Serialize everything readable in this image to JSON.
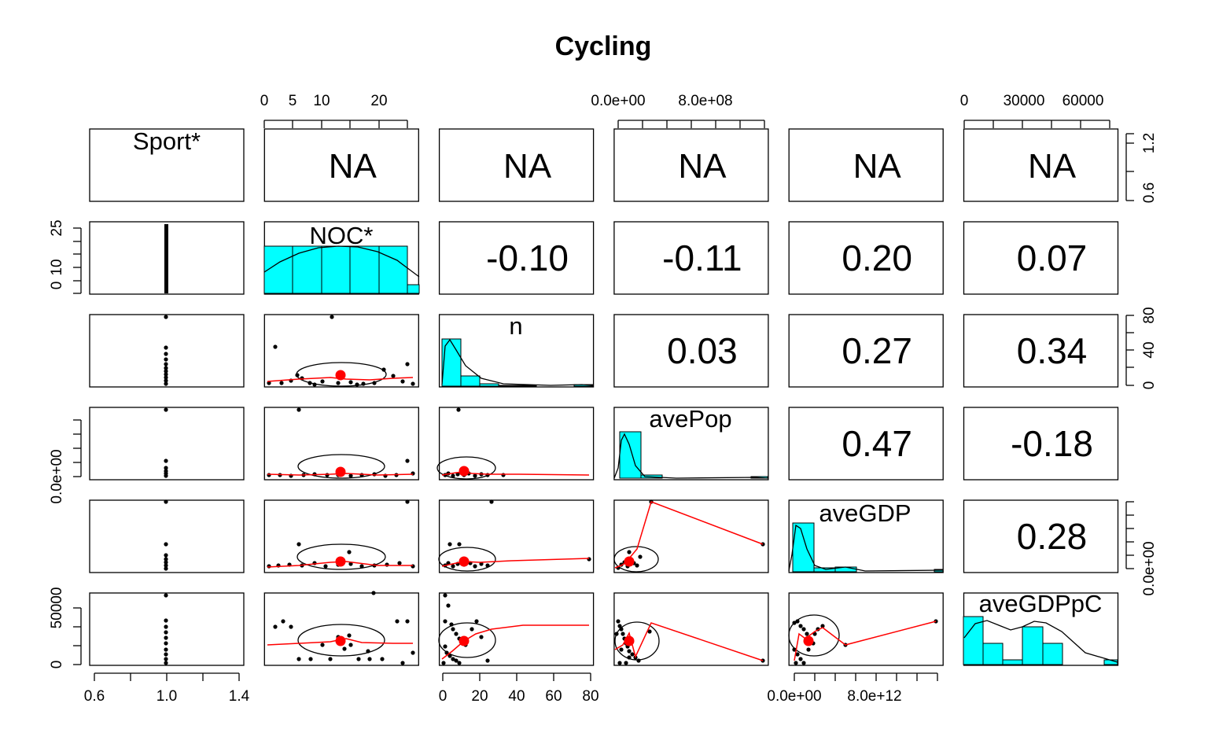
{
  "chart_data": {
    "type": "scatter",
    "title": "Cycling",
    "variables": [
      "Sport*",
      "NOC*",
      "n",
      "avePop",
      "aveGDP",
      "aveGDPpC"
    ],
    "upper_panels": [
      {
        "row": 0,
        "col": 1,
        "text": "NA"
      },
      {
        "row": 0,
        "col": 2,
        "text": "NA"
      },
      {
        "row": 0,
        "col": 3,
        "text": "NA"
      },
      {
        "row": 0,
        "col": 4,
        "text": "NA"
      },
      {
        "row": 0,
        "col": 5,
        "text": "NA"
      },
      {
        "row": 1,
        "col": 2,
        "text": "-0.10"
      },
      {
        "row": 1,
        "col": 3,
        "text": "-0.11"
      },
      {
        "row": 1,
        "col": 4,
        "text": "0.20"
      },
      {
        "row": 1,
        "col": 5,
        "text": "0.07"
      },
      {
        "row": 2,
        "col": 3,
        "text": "0.03"
      },
      {
        "row": 2,
        "col": 4,
        "text": "0.27"
      },
      {
        "row": 2,
        "col": 5,
        "text": "0.34"
      },
      {
        "row": 3,
        "col": 4,
        "text": "0.47"
      },
      {
        "row": 3,
        "col": 5,
        "text": "-0.18"
      },
      {
        "row": 4,
        "col": 5,
        "text": "0.28"
      }
    ],
    "axes": {
      "top": [
        {
          "col": 1,
          "labels": [
            "0",
            "5",
            "10",
            "20"
          ]
        },
        {
          "col": 3,
          "labels": [
            "0.0e+00",
            "8.0e+08"
          ]
        },
        {
          "col": 5,
          "labels": [
            "0",
            "30000",
            "60000"
          ]
        }
      ],
      "bottom": [
        {
          "col": 0,
          "labels": [
            "0.6",
            "1.0",
            "1.4"
          ]
        },
        {
          "col": 2,
          "labels": [
            "0",
            "20",
            "40",
            "60",
            "80"
          ]
        },
        {
          "col": 4,
          "labels": [
            "0.0e+00",
            "8.0e+12"
          ]
        }
      ],
      "left": [
        {
          "row": 1,
          "labels": [
            "0",
            "10",
            "25"
          ]
        },
        {
          "row": 3,
          "labels": [
            "0.0e+00"
          ]
        },
        {
          "row": 5,
          "labels": [
            "0",
            "50000"
          ]
        }
      ],
      "right": [
        {
          "row": 0,
          "labels": [
            "0.6",
            "1.2"
          ]
        },
        {
          "row": 2,
          "labels": [
            "0",
            "40",
            "80"
          ]
        },
        {
          "row": 4,
          "labels": [
            "0.0e+00"
          ]
        }
      ]
    },
    "colors": {
      "histogram": "#00FFFF",
      "smoother": "#FF0000",
      "mean_point": "#FF0000",
      "points": "#000000"
    }
  }
}
